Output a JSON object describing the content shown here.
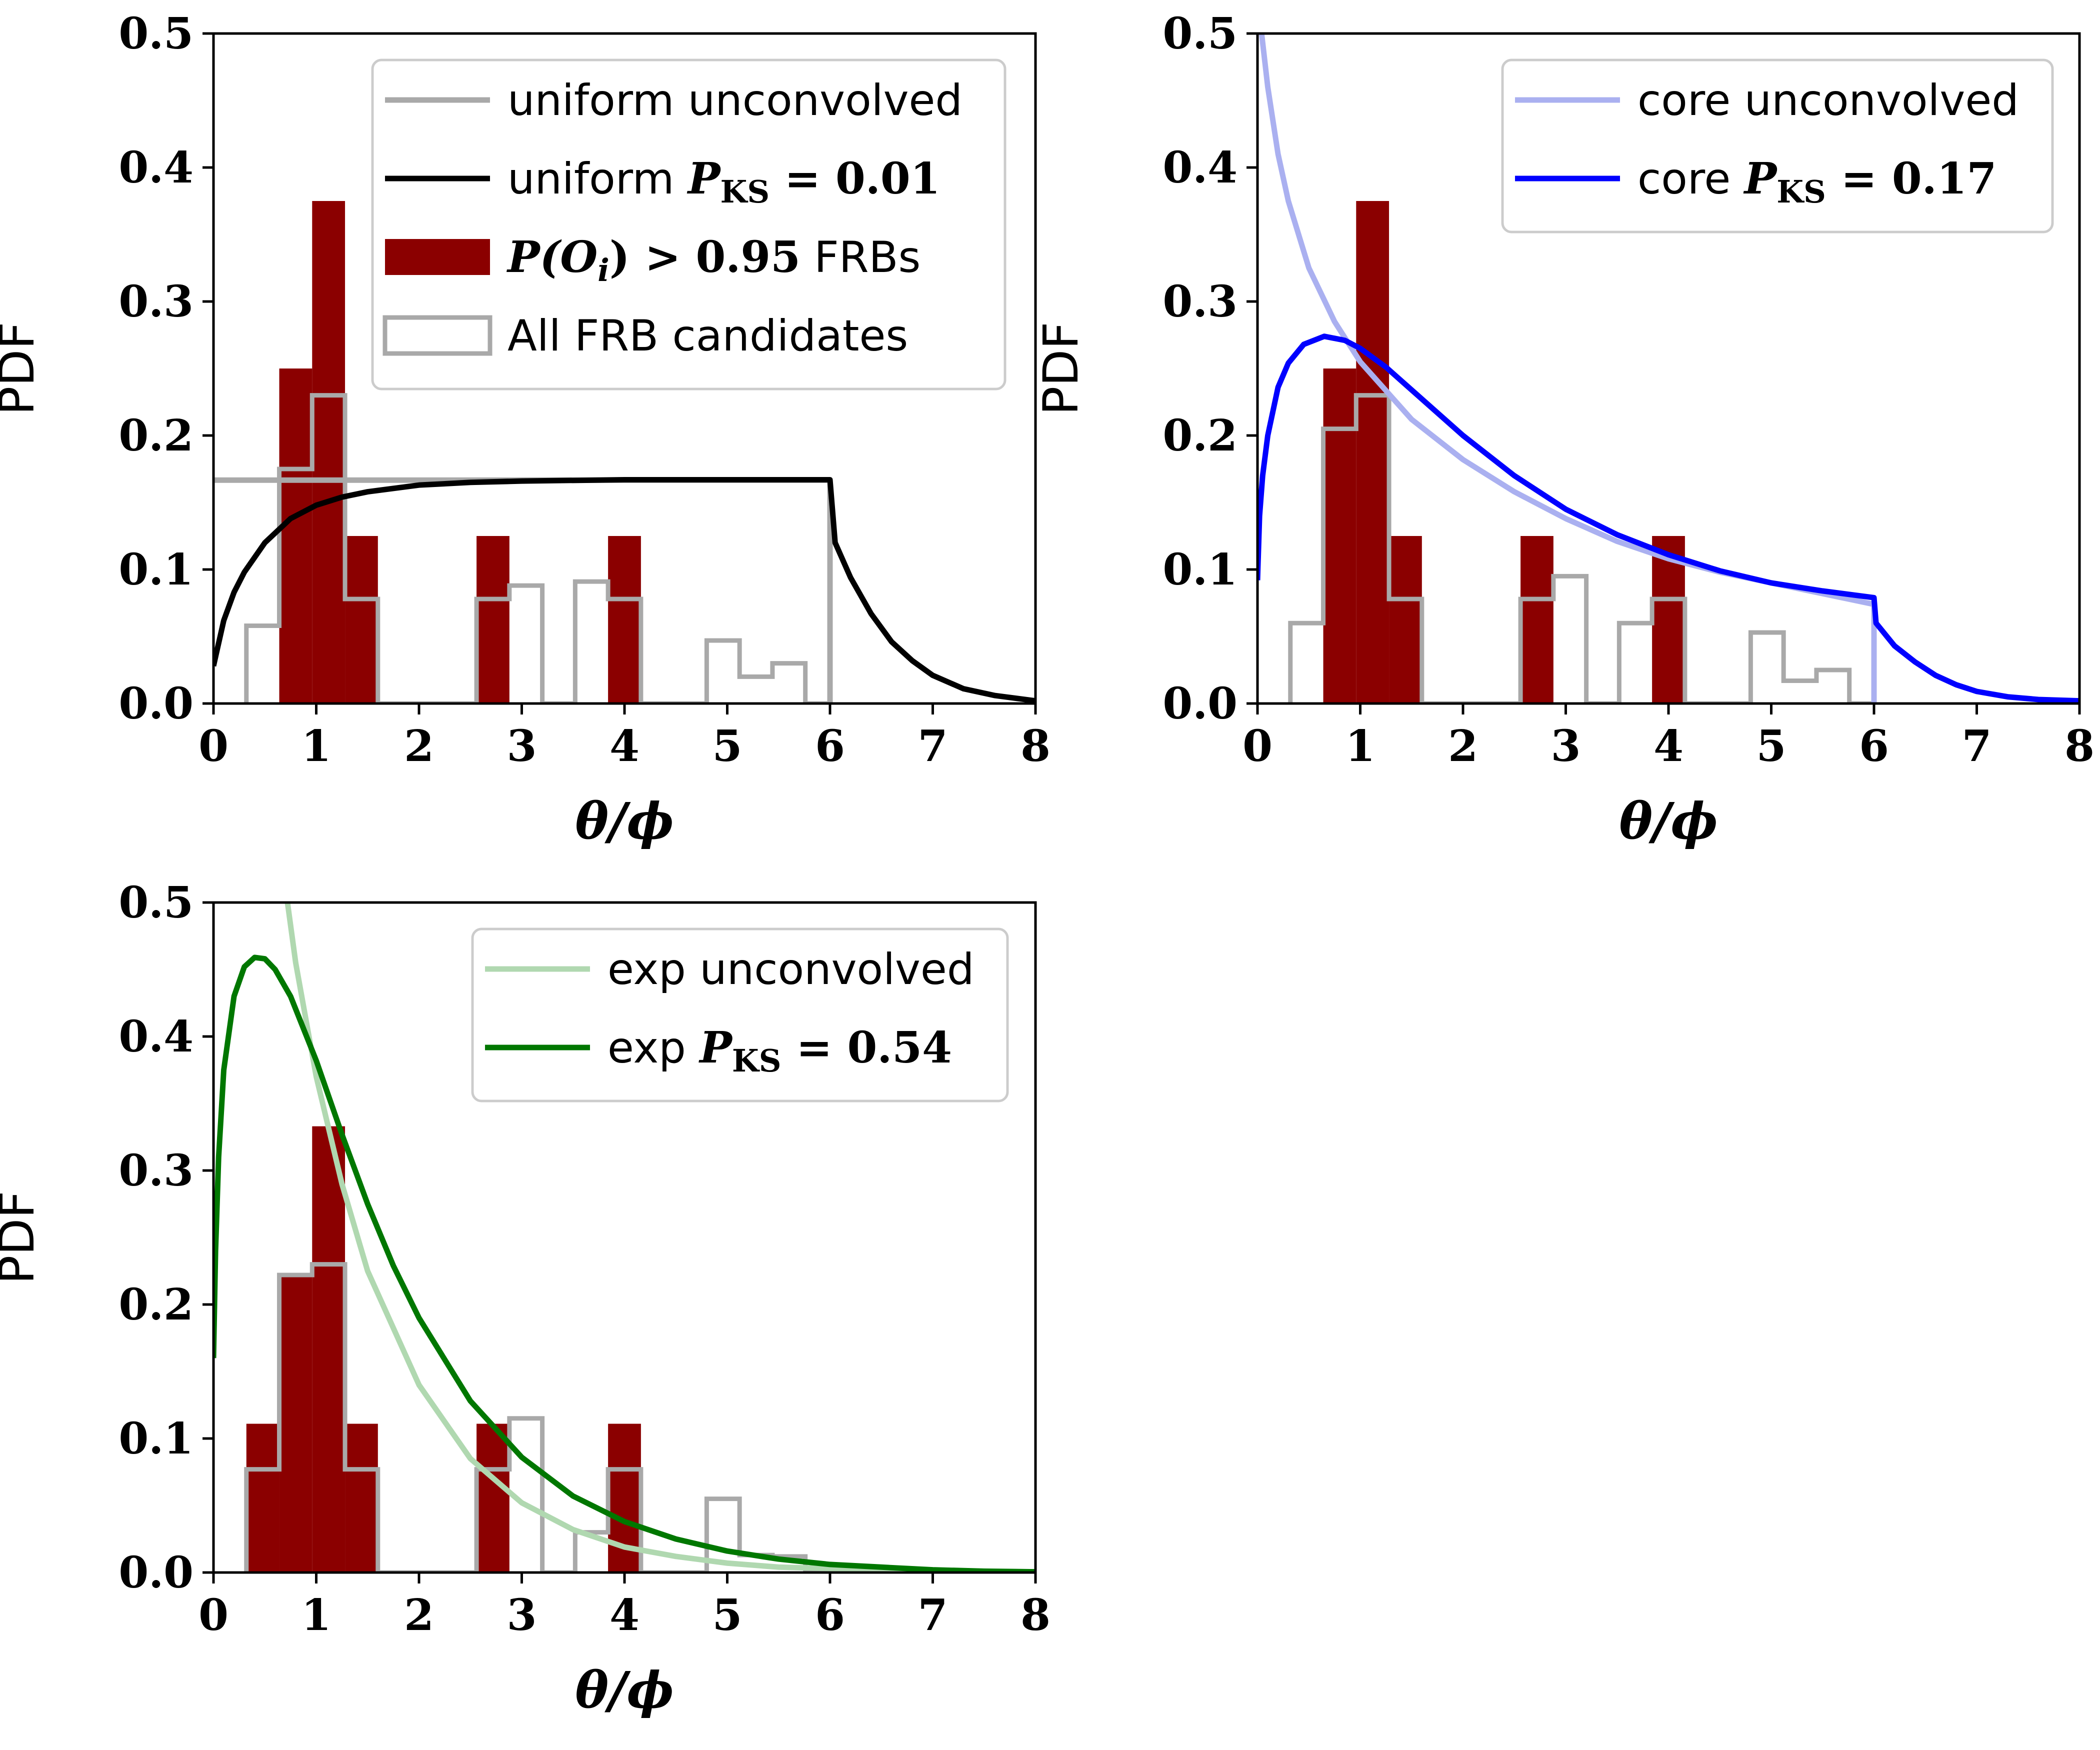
{
  "chart_data": [
    {
      "type": "bar",
      "panel": "uniform",
      "xlabel": "θ/ϕ",
      "ylabel": "PDF",
      "xlim": [
        0,
        8
      ],
      "ylim": [
        0,
        0.5
      ],
      "xticks": [
        "0",
        "1",
        "2",
        "3",
        "4",
        "5",
        "6",
        "7",
        "8"
      ],
      "yticks": [
        "0.0",
        "0.1",
        "0.2",
        "0.3",
        "0.4",
        "0.5"
      ],
      "legend_position": "upper right",
      "histogram_filled": {
        "name": "P(O_i) > 0.95 FRBs",
        "color": "#8b0000",
        "bins": [
          [
            0.64,
            0.96,
            0.25
          ],
          [
            0.96,
            1.28,
            0.375
          ],
          [
            1.28,
            1.6,
            0.125
          ],
          [
            2.56,
            2.88,
            0.125
          ],
          [
            3.84,
            4.16,
            0.125
          ]
        ]
      },
      "histogram_step": {
        "name": "All FRB candidates",
        "color": "#a9a9a9",
        "bins": [
          [
            0.32,
            0.64,
            0.058
          ],
          [
            0.64,
            0.96,
            0.175
          ],
          [
            0.96,
            1.28,
            0.23
          ],
          [
            1.28,
            1.6,
            0.078
          ],
          [
            1.6,
            2.56,
            0
          ],
          [
            2.56,
            2.88,
            0.078
          ],
          [
            2.88,
            3.2,
            0.088
          ],
          [
            3.2,
            3.52,
            0
          ],
          [
            3.52,
            3.84,
            0.091
          ],
          [
            3.84,
            4.16,
            0.078
          ],
          [
            4.16,
            4.8,
            0
          ],
          [
            4.8,
            5.12,
            0.047
          ],
          [
            5.12,
            5.44,
            0.02
          ],
          [
            5.44,
            5.76,
            0.03
          ],
          [
            5.76,
            6.0,
            0
          ]
        ]
      },
      "curves": [
        {
          "name": "unconvolved",
          "color": "#a9a9a9",
          "x": [
            0,
            6,
            6
          ],
          "y": [
            0.1667,
            0.1667,
            0
          ]
        },
        {
          "name": "convolved",
          "color": "#000000",
          "P_KS": "0.01",
          "x": [
            0,
            0.1,
            0.2,
            0.3,
            0.5,
            0.75,
            1.0,
            1.25,
            1.5,
            2.0,
            2.5,
            3.0,
            4.0,
            5.0,
            5.9,
            6.0,
            6.05,
            6.2,
            6.4,
            6.6,
            6.8,
            7.0,
            7.3,
            7.6,
            8.0
          ],
          "y": [
            0.028,
            0.062,
            0.083,
            0.098,
            0.12,
            0.138,
            0.148,
            0.154,
            0.158,
            0.163,
            0.165,
            0.166,
            0.167,
            0.167,
            0.167,
            0.167,
            0.12,
            0.094,
            0.067,
            0.046,
            0.032,
            0.021,
            0.011,
            0.006,
            0.002
          ]
        }
      ],
      "legend": [
        {
          "kind": "line",
          "color": "#a9a9a9",
          "label": "uniform unconvolved"
        },
        {
          "kind": "line",
          "color": "#000000",
          "label": "uniform",
          "math": "P",
          "sub": "KS",
          "value": " = 0.01"
        },
        {
          "kind": "patch",
          "color": "#8b0000",
          "label": " FRBs",
          "math": "P(O",
          "sub": "i",
          "value": ") > 0.95"
        },
        {
          "kind": "step",
          "color": "#a9a9a9",
          "label": "All FRB candidates"
        }
      ]
    },
    {
      "type": "bar",
      "panel": "core",
      "xlabel": "θ/ϕ",
      "ylabel": "PDF",
      "xlim": [
        0,
        8
      ],
      "ylim": [
        0,
        0.5
      ],
      "xticks": [
        "0",
        "1",
        "2",
        "3",
        "4",
        "5",
        "6",
        "7",
        "8"
      ],
      "yticks": [
        "0.0",
        "0.1",
        "0.2",
        "0.3",
        "0.4",
        "0.5"
      ],
      "legend_position": "upper right",
      "histogram_filled": {
        "color": "#8b0000",
        "bins": [
          [
            0.64,
            0.96,
            0.25
          ],
          [
            0.96,
            1.28,
            0.375
          ],
          [
            1.28,
            1.6,
            0.125
          ],
          [
            2.56,
            2.88,
            0.125
          ],
          [
            3.84,
            4.16,
            0.125
          ]
        ]
      },
      "histogram_step": {
        "color": "#a9a9a9",
        "bins": [
          [
            0.32,
            0.64,
            0.06
          ],
          [
            0.64,
            0.96,
            0.205
          ],
          [
            0.96,
            1.28,
            0.23
          ],
          [
            1.28,
            1.6,
            0.078
          ],
          [
            1.6,
            2.56,
            0
          ],
          [
            2.56,
            2.88,
            0.078
          ],
          [
            2.88,
            3.2,
            0.095
          ],
          [
            3.2,
            3.52,
            0
          ],
          [
            3.52,
            3.84,
            0.06
          ],
          [
            3.84,
            4.16,
            0.078
          ],
          [
            4.16,
            4.8,
            0
          ],
          [
            4.8,
            5.12,
            0.053
          ],
          [
            5.12,
            5.44,
            0.017
          ],
          [
            5.44,
            5.76,
            0.025
          ],
          [
            5.76,
            6.0,
            0
          ]
        ]
      },
      "curves": [
        {
          "name": "unconvolved",
          "color": "#aab0f0",
          "x": [
            0.04,
            0.1,
            0.2,
            0.3,
            0.5,
            0.75,
            1.0,
            1.5,
            2.0,
            2.5,
            3.0,
            3.5,
            4.0,
            4.5,
            5.0,
            5.5,
            6.0,
            6.0
          ],
          "y": [
            0.5,
            0.46,
            0.41,
            0.375,
            0.325,
            0.285,
            0.255,
            0.212,
            0.182,
            0.158,
            0.138,
            0.121,
            0.108,
            0.098,
            0.09,
            0.082,
            0.074,
            0
          ]
        },
        {
          "name": "convolved",
          "color": "#0000ff",
          "P_KS": "0.17",
          "x": [
            0,
            0.02,
            0.05,
            0.1,
            0.2,
            0.3,
            0.45,
            0.65,
            0.85,
            1.0,
            1.25,
            1.5,
            2.0,
            2.5,
            3.0,
            3.5,
            4.0,
            4.5,
            5.0,
            5.5,
            6.0,
            6.02,
            6.2,
            6.4,
            6.6,
            6.8,
            7.0,
            7.3,
            7.6,
            8.0
          ],
          "y": [
            0.092,
            0.14,
            0.17,
            0.2,
            0.236,
            0.254,
            0.268,
            0.274,
            0.271,
            0.265,
            0.251,
            0.234,
            0.2,
            0.17,
            0.145,
            0.126,
            0.111,
            0.099,
            0.09,
            0.084,
            0.079,
            0.06,
            0.043,
            0.031,
            0.021,
            0.014,
            0.009,
            0.005,
            0.003,
            0.002
          ]
        }
      ],
      "legend": [
        {
          "kind": "line",
          "color": "#aab0f0",
          "label": "core unconvolved"
        },
        {
          "kind": "line",
          "color": "#0000ff",
          "label": "core",
          "math": "P",
          "sub": "KS",
          "value": " = 0.17"
        }
      ]
    },
    {
      "type": "bar",
      "panel": "exp",
      "xlabel": "θ/ϕ",
      "ylabel": "PDF",
      "xlim": [
        0,
        8
      ],
      "ylim": [
        0,
        0.5
      ],
      "xticks": [
        "0",
        "1",
        "2",
        "3",
        "4",
        "5",
        "6",
        "7",
        "8"
      ],
      "yticks": [
        "0.0",
        "0.1",
        "0.2",
        "0.3",
        "0.4",
        "0.5"
      ],
      "legend_position": "upper right",
      "histogram_filled": {
        "color": "#8b0000",
        "bins": [
          [
            0.32,
            0.64,
            0.111
          ],
          [
            0.64,
            0.96,
            0.222
          ],
          [
            0.96,
            1.28,
            0.333
          ],
          [
            1.28,
            1.6,
            0.111
          ],
          [
            2.56,
            2.88,
            0.111
          ],
          [
            3.84,
            4.16,
            0.111
          ]
        ]
      },
      "histogram_step": {
        "color": "#a9a9a9",
        "bins": [
          [
            0.32,
            0.64,
            0.077
          ],
          [
            0.64,
            0.96,
            0.222
          ],
          [
            0.96,
            1.28,
            0.23
          ],
          [
            1.28,
            1.6,
            0.077
          ],
          [
            1.6,
            2.56,
            0
          ],
          [
            2.56,
            2.88,
            0.077
          ],
          [
            2.88,
            3.2,
            0.115
          ],
          [
            3.2,
            3.52,
            0
          ],
          [
            3.52,
            3.84,
            0.03
          ],
          [
            3.84,
            4.16,
            0.077
          ],
          [
            4.16,
            4.8,
            0
          ],
          [
            4.8,
            5.12,
            0.055
          ],
          [
            5.12,
            5.44,
            0.013
          ],
          [
            5.44,
            5.76,
            0.012
          ],
          [
            5.76,
            6.0,
            0
          ]
        ]
      },
      "curves": [
        {
          "name": "unconvolved",
          "color": "#b0d8b0",
          "x": [
            0.72,
            0.8,
            1.0,
            1.25,
            1.5,
            2.0,
            2.5,
            3.0,
            3.5,
            4.0,
            4.5,
            5.0,
            5.5,
            6.0,
            7.0,
            8.0
          ],
          "y": [
            0.5,
            0.455,
            0.37,
            0.29,
            0.225,
            0.14,
            0.085,
            0.052,
            0.032,
            0.019,
            0.012,
            0.007,
            0.004,
            0.003,
            0.001,
            0.0005
          ]
        },
        {
          "name": "convolved",
          "color": "#007700",
          "P_KS": "0.54",
          "x": [
            0,
            0.02,
            0.05,
            0.1,
            0.2,
            0.3,
            0.4,
            0.5,
            0.6,
            0.75,
            1.0,
            1.25,
            1.5,
            1.75,
            2.0,
            2.5,
            3.0,
            3.5,
            4.0,
            4.5,
            5.0,
            5.5,
            6.0,
            6.5,
            7.0,
            7.5,
            8.0
          ],
          "y": [
            0.16,
            0.24,
            0.31,
            0.375,
            0.43,
            0.452,
            0.459,
            0.458,
            0.45,
            0.43,
            0.382,
            0.327,
            0.275,
            0.229,
            0.19,
            0.128,
            0.086,
            0.057,
            0.038,
            0.025,
            0.016,
            0.01,
            0.006,
            0.004,
            0.002,
            0.001,
            0.0005
          ]
        }
      ],
      "legend": [
        {
          "kind": "line",
          "color": "#b0d8b0",
          "label": "exp unconvolved"
        },
        {
          "kind": "line",
          "color": "#007700",
          "label": "exp",
          "math": "P",
          "sub": "KS",
          "value": " = 0.54"
        }
      ]
    }
  ]
}
